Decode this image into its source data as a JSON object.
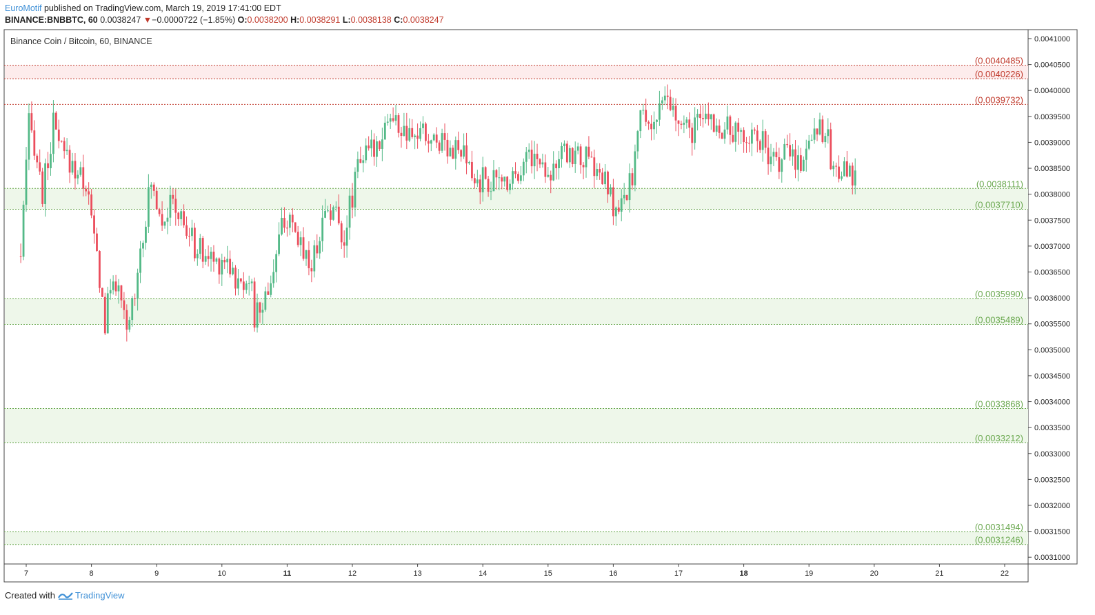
{
  "header": {
    "author": "EuroMotif",
    "published_text": "published on TradingView.com, March 19, 2019 17:41:00 EDT",
    "symbol": "BINANCE:BNBBTC, 60",
    "last": "0.0038247",
    "change_arrow": "▼",
    "change": "−0.0000722 (−1.85%)",
    "open_label": "O:",
    "open": "0.0038200",
    "high_label": "H:",
    "high": "0.0038291",
    "low_label": "L:",
    "low": "0.0038138",
    "close_label": "C:",
    "close": "0.0038247"
  },
  "footer": {
    "created_with": "Created with",
    "brand": "TradingView"
  },
  "colors": {
    "up": "#53b987",
    "down": "#eb4d5c",
    "resistance": "#c0392b",
    "support": "#6aa84f",
    "resistance_fill": "#fdecec",
    "support_fill": "#eef7ea",
    "accent": "#3d8fd6"
  },
  "chart_data": {
    "type": "candlestick",
    "title": "Binance Coin / Bitcoin, 60, BINANCE",
    "y_range": [
      0.003095,
      0.00412
    ],
    "x_range": [
      "2019-03-06T22:00",
      "2019-03-22T14:00"
    ],
    "y_ticks": [
      "0.0041000",
      "0.0040500",
      "0.0040000",
      "0.0039500",
      "0.0039000",
      "0.0038500",
      "0.0038000",
      "0.0037500",
      "0.0037000",
      "0.0036500",
      "0.0036000",
      "0.0035500",
      "0.0035000",
      "0.0034500",
      "0.0034000",
      "0.0033500",
      "0.0033000",
      "0.0032500",
      "0.0032000",
      "0.0031500",
      "0.0031000"
    ],
    "x_ticks": [
      {
        "label": "7",
        "date": "2019-03-07",
        "bold": false
      },
      {
        "label": "8",
        "date": "2019-03-08",
        "bold": false
      },
      {
        "label": "9",
        "date": "2019-03-09",
        "bold": false
      },
      {
        "label": "10",
        "date": "2019-03-10",
        "bold": false
      },
      {
        "label": "11",
        "date": "2019-03-11",
        "bold": true
      },
      {
        "label": "12",
        "date": "2019-03-12",
        "bold": false
      },
      {
        "label": "13",
        "date": "2019-03-13",
        "bold": false
      },
      {
        "label": "14",
        "date": "2019-03-14",
        "bold": false
      },
      {
        "label": "15",
        "date": "2019-03-15",
        "bold": false
      },
      {
        "label": "16",
        "date": "2019-03-16",
        "bold": false
      },
      {
        "label": "17",
        "date": "2019-03-17",
        "bold": false
      },
      {
        "label": "18",
        "date": "2019-03-18",
        "bold": true
      },
      {
        "label": "19",
        "date": "2019-03-19",
        "bold": false
      },
      {
        "label": "20",
        "date": "2019-03-20",
        "bold": false
      },
      {
        "label": "21",
        "date": "2019-03-21",
        "bold": false
      },
      {
        "label": "22",
        "date": "2019-03-22",
        "bold": false
      }
    ],
    "zones": [
      {
        "kind": "resistance",
        "top": 0.0040485,
        "bottom": 0.0040226,
        "top_label": "(0.0040485)",
        "bottom_label": "(0.0040226)"
      },
      {
        "kind": "resistance",
        "level": 0.0039732,
        "label": "(0.0039732)"
      },
      {
        "kind": "support",
        "top": 0.0038111,
        "bottom": 0.003771,
        "top_label": "(0.0038111)",
        "bottom_label": "(0.0037710)"
      },
      {
        "kind": "support",
        "top": 0.003599,
        "bottom": 0.0035489,
        "top_label": "(0.0035990)",
        "bottom_label": "(0.0035489)"
      },
      {
        "kind": "support",
        "top": 0.0033868,
        "bottom": 0.0033212,
        "top_label": "(0.0033868)",
        "bottom_label": "(0.0033212)"
      },
      {
        "kind": "support",
        "top": 0.0031494,
        "bottom": 0.0031246,
        "top_label": "(0.0031494)",
        "bottom_label": "(0.0031246)"
      }
    ],
    "closes": [
      {
        "t": "2019-03-06T22:00",
        "close": 0.00368
      },
      {
        "t": "2019-03-07T00:00",
        "close": 0.00385
      },
      {
        "t": "2019-03-07T01:00",
        "close": 0.00393
      },
      {
        "t": "2019-03-07T03:00",
        "close": 0.0039
      },
      {
        "t": "2019-03-07T06:00",
        "close": 0.0038
      },
      {
        "t": "2019-03-07T10:00",
        "close": 0.00393
      },
      {
        "t": "2019-03-07T13:00",
        "close": 0.00388
      },
      {
        "t": "2019-03-07T18:00",
        "close": 0.00385
      },
      {
        "t": "2019-03-07T22:00",
        "close": 0.00382
      },
      {
        "t": "2019-03-08T02:00",
        "close": 0.00368
      },
      {
        "t": "2019-03-08T05:00",
        "close": 0.00355
      },
      {
        "t": "2019-03-08T08:00",
        "close": 0.00365
      },
      {
        "t": "2019-03-08T11:00",
        "close": 0.00358
      },
      {
        "t": "2019-03-08T13:00",
        "close": 0.00353
      },
      {
        "t": "2019-03-08T16:00",
        "close": 0.00362
      },
      {
        "t": "2019-03-08T18:00",
        "close": 0.0037
      },
      {
        "t": "2019-03-08T22:00",
        "close": 0.00382
      },
      {
        "t": "2019-03-09T02:00",
        "close": 0.00376
      },
      {
        "t": "2019-03-09T06:00",
        "close": 0.00378
      },
      {
        "t": "2019-03-09T10:00",
        "close": 0.00374
      },
      {
        "t": "2019-03-09T14:00",
        "close": 0.0037
      },
      {
        "t": "2019-03-09T18:00",
        "close": 0.00368
      },
      {
        "t": "2019-03-09T22:00",
        "close": 0.00367
      },
      {
        "t": "2019-03-10T02:00",
        "close": 0.00368
      },
      {
        "t": "2019-03-10T06:00",
        "close": 0.00362
      },
      {
        "t": "2019-03-10T10:00",
        "close": 0.00365
      },
      {
        "t": "2019-03-10T12:00",
        "close": 0.00356
      },
      {
        "t": "2019-03-10T16:00",
        "close": 0.0036
      },
      {
        "t": "2019-03-10T20:00",
        "close": 0.00368
      },
      {
        "t": "2019-03-10T23:00",
        "close": 0.00376
      },
      {
        "t": "2019-03-11T02:00",
        "close": 0.00372
      },
      {
        "t": "2019-03-11T06:00",
        "close": 0.0037
      },
      {
        "t": "2019-03-11T09:00",
        "close": 0.00366
      },
      {
        "t": "2019-03-11T12:00",
        "close": 0.00373
      },
      {
        "t": "2019-03-11T15:00",
        "close": 0.00378
      },
      {
        "t": "2019-03-11T18:00",
        "close": 0.00376
      },
      {
        "t": "2019-03-11T21:00",
        "close": 0.00372
      },
      {
        "t": "2019-03-12T00:00",
        "close": 0.0038
      },
      {
        "t": "2019-03-12T02:00",
        "close": 0.00388
      },
      {
        "t": "2019-03-12T05:00",
        "close": 0.00387
      },
      {
        "t": "2019-03-12T09:00",
        "close": 0.0039
      },
      {
        "t": "2019-03-12T13:00",
        "close": 0.00395
      },
      {
        "t": "2019-03-12T17:00",
        "close": 0.00393
      },
      {
        "t": "2019-03-12T21:00",
        "close": 0.0039
      },
      {
        "t": "2019-03-13T01:00",
        "close": 0.00392
      },
      {
        "t": "2019-03-13T05:00",
        "close": 0.0039
      },
      {
        "t": "2019-03-13T09:00",
        "close": 0.00391
      },
      {
        "t": "2019-03-13T13:00",
        "close": 0.00389
      },
      {
        "t": "2019-03-13T17:00",
        "close": 0.00387
      },
      {
        "t": "2019-03-13T21:00",
        "close": 0.00382
      },
      {
        "t": "2019-03-14T01:00",
        "close": 0.00383
      },
      {
        "t": "2019-03-14T05:00",
        "close": 0.00382
      },
      {
        "t": "2019-03-14T09:00",
        "close": 0.00383
      },
      {
        "t": "2019-03-14T13:00",
        "close": 0.00385
      },
      {
        "t": "2019-03-14T17:00",
        "close": 0.00388
      },
      {
        "t": "2019-03-14T21:00",
        "close": 0.00386
      },
      {
        "t": "2019-03-15T01:00",
        "close": 0.00385
      },
      {
        "t": "2019-03-15T05:00",
        "close": 0.00387
      },
      {
        "t": "2019-03-15T09:00",
        "close": 0.00388
      },
      {
        "t": "2019-03-15T13:00",
        "close": 0.00387
      },
      {
        "t": "2019-03-15T17:00",
        "close": 0.00385
      },
      {
        "t": "2019-03-15T21:00",
        "close": 0.00382
      },
      {
        "t": "2019-03-16T01:00",
        "close": 0.00376
      },
      {
        "t": "2019-03-16T04:00",
        "close": 0.00378
      },
      {
        "t": "2019-03-16T07:00",
        "close": 0.00384
      },
      {
        "t": "2019-03-16T10:00",
        "close": 0.00395
      },
      {
        "t": "2019-03-16T14:00",
        "close": 0.00394
      },
      {
        "t": "2019-03-16T18:00",
        "close": 0.00396
      },
      {
        "t": "2019-03-16T20:00",
        "close": 0.00398
      },
      {
        "t": "2019-03-16T23:00",
        "close": 0.00394
      },
      {
        "t": "2019-03-17T03:00",
        "close": 0.00392
      },
      {
        "t": "2019-03-17T07:00",
        "close": 0.00393
      },
      {
        "t": "2019-03-17T11:00",
        "close": 0.00395
      },
      {
        "t": "2019-03-17T15:00",
        "close": 0.00393
      },
      {
        "t": "2019-03-17T19:00",
        "close": 0.00392
      },
      {
        "t": "2019-03-17T23:00",
        "close": 0.00391
      },
      {
        "t": "2019-03-18T03:00",
        "close": 0.00392
      },
      {
        "t": "2019-03-18T07:00",
        "close": 0.0039
      },
      {
        "t": "2019-03-18T09:00",
        "close": 0.00385
      },
      {
        "t": "2019-03-18T13:00",
        "close": 0.00387
      },
      {
        "t": "2019-03-18T17:00",
        "close": 0.00388
      },
      {
        "t": "2019-03-18T21:00",
        "close": 0.00386
      },
      {
        "t": "2019-03-19T01:00",
        "close": 0.00392
      },
      {
        "t": "2019-03-19T04:00",
        "close": 0.00394
      },
      {
        "t": "2019-03-19T07:00",
        "close": 0.0039
      },
      {
        "t": "2019-03-19T09:00",
        "close": 0.00384
      },
      {
        "t": "2019-03-19T12:00",
        "close": 0.00386
      },
      {
        "t": "2019-03-19T14:00",
        "close": 0.00383
      },
      {
        "t": "2019-03-19T17:00",
        "close": 0.003825
      }
    ]
  }
}
